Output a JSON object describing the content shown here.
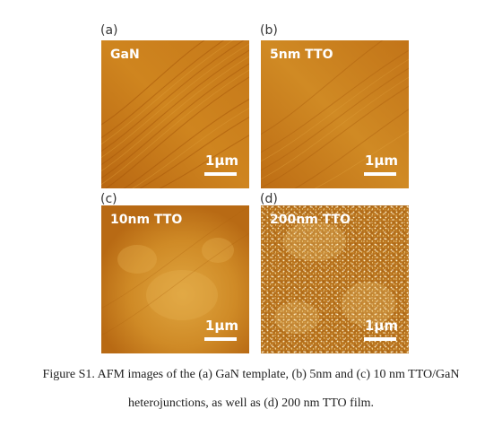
{
  "panels": [
    {
      "letter": "(a)",
      "label": "GaN",
      "scale": "1μm"
    },
    {
      "letter": "(b)",
      "label": "5nm TTO",
      "scale": "1μm"
    },
    {
      "letter": "(c)",
      "label": "10nm TTO",
      "scale": "1μm"
    },
    {
      "letter": "(d)",
      "label": "200nm TTO",
      "scale": "1μm"
    }
  ],
  "caption": {
    "line1": "Figure S1. AFM images of the (a) GaN template, (b) 5nm and (c) 10 nm TTO/GaN",
    "line2": "heterojunctions, as well as (d) 200 nm TTO film."
  },
  "colors": {
    "afm_dark": "#a85a0c",
    "afm_mid": "#c97a1c",
    "afm_light": "#e0a640",
    "afm_grain": "#fff4d0"
  }
}
